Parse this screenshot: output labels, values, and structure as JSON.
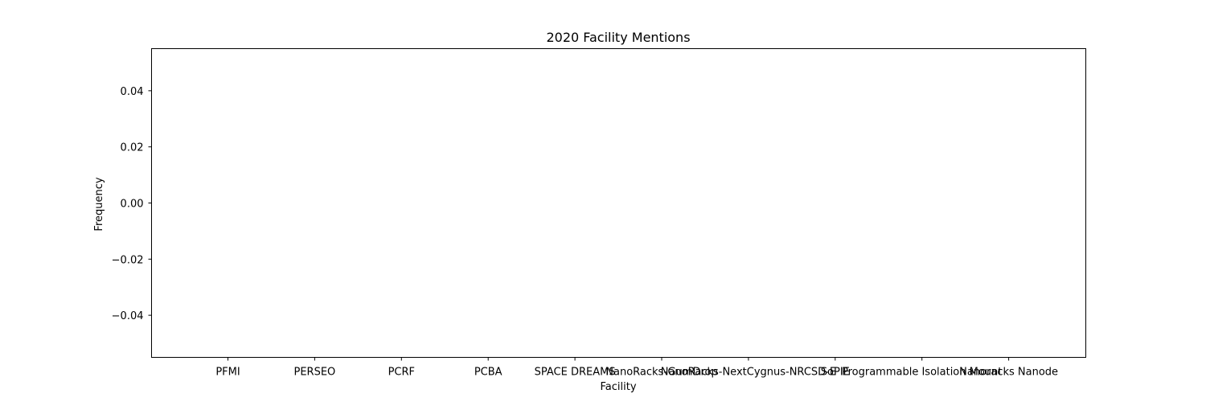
{
  "chart_data": {
    "type": "bar",
    "title": "2020 Facility Mentions",
    "xlabel": "Facility",
    "ylabel": "Frequency",
    "categories": [
      "PFMI",
      "PERSEO",
      "PCRF",
      "PCBA",
      "SPACE DREAMS",
      "NanoRacks-GumDrop",
      "NanoRacks-NextCygnus-NRCSD-E",
      "SoPIE",
      "Programmable Isolation Mount",
      "Nanoracks Nanode"
    ],
    "values": [
      0,
      0,
      0,
      0,
      0,
      0,
      0,
      0,
      0,
      0
    ],
    "ylim": [
      -0.055,
      0.055
    ],
    "yticks": [
      -0.04,
      -0.02,
      0.0,
      0.02,
      0.04
    ],
    "ytick_labels": [
      "−0.04",
      "−0.02",
      "0.00",
      "0.02",
      "0.04"
    ],
    "grid": false,
    "bar_color": "#1f77b4"
  }
}
